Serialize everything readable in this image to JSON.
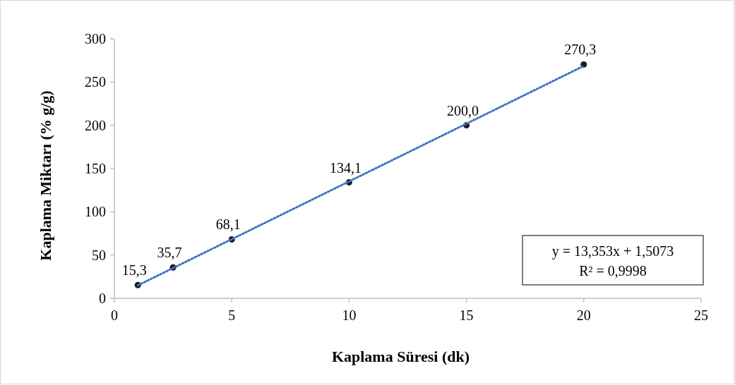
{
  "chart_data": {
    "type": "scatter",
    "xlabel": "Kaplama Süresi (dk)",
    "ylabel": "Kaplama Miktarı (% g/g)",
    "xlim": [
      0,
      25
    ],
    "xticks": [
      0,
      5,
      10,
      15,
      20,
      25
    ],
    "ylim": [
      0,
      300
    ],
    "yticks": [
      0,
      50,
      100,
      150,
      200,
      250,
      300
    ],
    "grid": false,
    "series": [
      {
        "color": "#1a1a1a",
        "marker": "circle",
        "x": [
          1,
          2.5,
          5,
          10,
          15,
          20
        ],
        "values": [
          15.3,
          35.7,
          68.1,
          134.1,
          200.0,
          270.3
        ],
        "value_labels": [
          "15,3",
          "35,7",
          "68,1",
          "134,1",
          "200,0",
          "270,3"
        ]
      },
      {
        "type": "line",
        "color": "#4472c4",
        "marker": "none",
        "line_style": "dotted",
        "x": [
          1,
          20
        ],
        "values": [
          14.9,
          268.6
        ]
      }
    ],
    "annotations": [
      "y = 13,353x + 1,5073",
      "R² = 0,9998"
    ]
  }
}
